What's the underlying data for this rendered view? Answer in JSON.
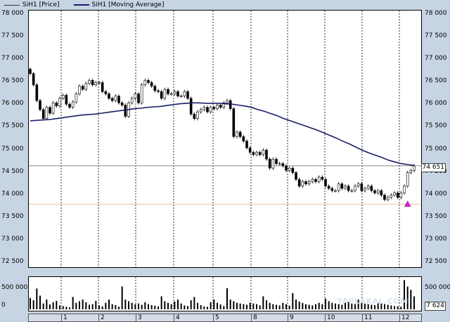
{
  "legend": {
    "price_label": "SiH1 [Price]",
    "ma_label": "SiH1 [Moving Average]"
  },
  "colors": {
    "price": "#000000",
    "ma": "#1a1e66",
    "background": "#c6d4e3",
    "arrow": "#cc22cc",
    "grid": "#000000",
    "hline": "#e2c890"
  },
  "y_ticks": [
    "78 000",
    "77 500",
    "77 000",
    "76 500",
    "76 000",
    "75 500",
    "75 000",
    "74 500",
    "74 000",
    "73 500",
    "73 000",
    "72 500"
  ],
  "y_tick_values": [
    78000,
    77500,
    77000,
    76500,
    76000,
    75500,
    75000,
    74500,
    74000,
    73500,
    73000,
    72500
  ],
  "vol_ticks": [
    "500 000",
    "0"
  ],
  "x_labels": [
    "1",
    "2",
    "3",
    "4",
    "5",
    "8",
    "9",
    "10",
    "11",
    "12"
  ],
  "current_price": "74 651",
  "current_volume": "7 624",
  "watermark": "YAPLAKAL.COM",
  "chart_data": {
    "type": "candlestick",
    "ylim": [
      72400,
      78100
    ],
    "price": [
      76700,
      76450,
      76100,
      75900,
      75700,
      75950,
      75820,
      76050,
      75980,
      76150,
      76220,
      76020,
      75950,
      76070,
      76250,
      76420,
      76350,
      76480,
      76550,
      76450,
      76500,
      76500,
      76300,
      76250,
      76150,
      76100,
      76200,
      76050,
      76000,
      75750,
      76050,
      76150,
      76250,
      76050,
      76450,
      76550,
      76500,
      76420,
      76320,
      76300,
      76150,
      76350,
      76250,
      76250,
      76300,
      76200,
      76200,
      76300,
      76150,
      75800,
      75700,
      75850,
      75900,
      75950,
      75850,
      75950,
      75920,
      76000,
      75950,
      76050,
      76100,
      75920,
      75300,
      75400,
      75300,
      75200,
      75050,
      74950,
      74900,
      74950,
      74900,
      75000,
      74800,
      74600,
      74800,
      74700,
      74700,
      74650,
      74550,
      74600,
      74500,
      74350,
      74200,
      74300,
      74250,
      74300,
      74350,
      74300,
      74400,
      74350,
      74200,
      74150,
      74100,
      74100,
      74250,
      74150,
      74200,
      74100,
      74100,
      74200,
      74250,
      74100,
      74150,
      74200,
      74100,
      74050,
      74100,
      74000,
      73900,
      73950,
      74000,
      74050,
      73950,
      74050,
      74200,
      74500,
      74550,
      74650
    ],
    "ma": [
      75650,
      75660,
      75670,
      75680,
      75700,
      75720,
      75740,
      75760,
      75780,
      75790,
      75800,
      75820,
      75840,
      75860,
      75880,
      75900,
      75920,
      75930,
      75950,
      75960,
      75970,
      75990,
      76010,
      76030,
      76040,
      76050,
      76050,
      76040,
      76040,
      76040,
      76030,
      76020,
      76000,
      75980,
      75950,
      75900,
      75860,
      75810,
      75760,
      75700,
      75650,
      75600,
      75550,
      75500,
      75450,
      75390,
      75330,
      75270,
      75200,
      75140,
      75070,
      75000,
      74940,
      74890,
      74840,
      74780,
      74740,
      74700,
      74680,
      74660
    ],
    "volume": [
      350000,
      280000,
      640000,
      420000,
      180000,
      300000,
      150000,
      220000,
      260000,
      120000,
      100000,
      80000,
      60000,
      380000,
      200000,
      250000,
      300000,
      220000,
      140000,
      160000,
      260000,
      120000,
      90000,
      200000,
      300000,
      160000,
      130000,
      80000,
      700000,
      300000,
      250000,
      200000,
      160000,
      180000,
      140000,
      220000,
      160000,
      130000,
      110000,
      90000,
      400000,
      250000,
      200000,
      160000,
      240000,
      300000,
      180000,
      120000,
      100000,
      280000,
      380000,
      200000,
      130000,
      90000,
      80000,
      220000,
      300000,
      200000,
      150000,
      100000,
      650000,
      300000,
      250000,
      200000,
      180000,
      160000,
      140000,
      200000,
      180000,
      160000,
      120000,
      400000,
      280000,
      200000,
      160000,
      140000,
      120000,
      200000,
      160000,
      110000,
      500000,
      300000,
      240000,
      200000,
      160000,
      140000,
      120000,
      160000,
      200000,
      160000,
      330000,
      250000,
      200000,
      180000,
      160000,
      140000,
      200000,
      230000,
      180000,
      160000,
      300000,
      200000,
      180000,
      160000,
      140000,
      130000,
      200000,
      180000,
      160000,
      140000,
      120000,
      100000,
      90000,
      80000,
      900000,
      700000,
      600000,
      400000
    ]
  }
}
